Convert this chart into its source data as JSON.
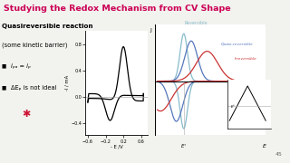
{
  "title": "Studying the Redox Mechanism from CV Shape",
  "title_color": "#cc0055",
  "slide_bg": "#f2f2ee",
  "left_text_line1": "Quasireversible reaction",
  "left_text_line2": "(some kinetic barrier)",
  "bullet1a": "i",
  "bullet1b": "pa",
  "bullet1c": " = i",
  "bullet1d": "pc",
  "bullet2": "ΔEₚ is not ideal",
  "cv_xlabel": "- E /V",
  "cv_ylabel": "-I / mA",
  "cv_xlim": [
    -0.65,
    0.75
  ],
  "cv_ylim": [
    -0.58,
    1.0
  ],
  "cv_xticks": [
    -0.6,
    -0.2,
    0.2,
    0.6
  ],
  "cv_yticks": [
    -0.4,
    0.0,
    0.4,
    0.8
  ],
  "rev_color": "#88bbcc",
  "qr_color": "#5577bb",
  "irr_color": "#cc3333",
  "page_number": "45",
  "bottom_bar_color1": "#e04080",
  "bottom_bar_color2": "#e8a000"
}
